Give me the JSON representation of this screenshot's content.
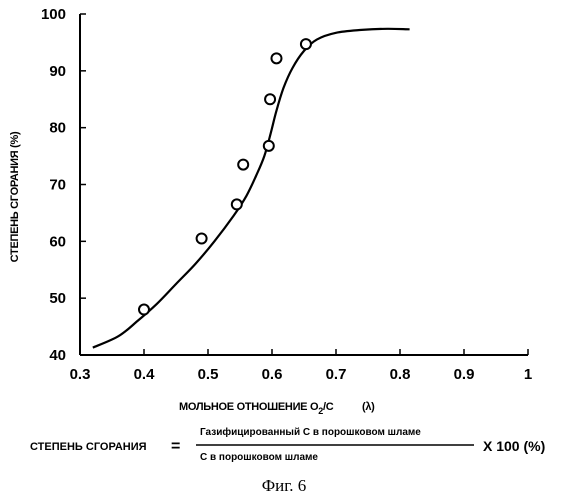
{
  "chart_data": {
    "type": "scatter",
    "xlabel_main": "МОЛЬНОЕ ОТНОШЕНИЕ O",
    "xlabel_sub": "2",
    "xlabel_tail": "/C",
    "xlabel_lambda": "(λ)",
    "ylabel": "СТЕПЕНЬ СГОРАНИЯ (%)",
    "xlim": [
      0.3,
      1.0
    ],
    "ylim": [
      40,
      100
    ],
    "xticks": [
      0.3,
      0.4,
      0.5,
      0.6,
      0.7,
      0.8,
      0.9,
      1.0
    ],
    "xtick_labels": [
      "0.3",
      "0.4",
      "0.5",
      "0.6",
      "0.7",
      "0.8",
      "0.9",
      "1"
    ],
    "yticks": [
      40,
      50,
      60,
      70,
      80,
      90,
      100
    ],
    "ytick_labels": [
      "40",
      "50",
      "60",
      "70",
      "80",
      "90",
      "100"
    ],
    "grid": false,
    "points": [
      {
        "x": 0.4,
        "y": 48.0
      },
      {
        "x": 0.49,
        "y": 60.5
      },
      {
        "x": 0.545,
        "y": 66.5
      },
      {
        "x": 0.555,
        "y": 73.5
      },
      {
        "x": 0.595,
        "y": 76.8
      },
      {
        "x": 0.597,
        "y": 85.0
      },
      {
        "x": 0.607,
        "y": 92.2
      },
      {
        "x": 0.653,
        "y": 94.7
      }
    ],
    "fit_curve": [
      {
        "x": 0.32,
        "y": 41.3
      },
      {
        "x": 0.36,
        "y": 43.3
      },
      {
        "x": 0.39,
        "y": 46.0
      },
      {
        "x": 0.42,
        "y": 49.0
      },
      {
        "x": 0.45,
        "y": 52.5
      },
      {
        "x": 0.48,
        "y": 56.0
      },
      {
        "x": 0.51,
        "y": 60.0
      },
      {
        "x": 0.54,
        "y": 64.5
      },
      {
        "x": 0.56,
        "y": 68.0
      },
      {
        "x": 0.575,
        "y": 71.5
      },
      {
        "x": 0.588,
        "y": 75.0
      },
      {
        "x": 0.598,
        "y": 79.0
      },
      {
        "x": 0.607,
        "y": 83.0
      },
      {
        "x": 0.618,
        "y": 87.0
      },
      {
        "x": 0.632,
        "y": 90.5
      },
      {
        "x": 0.65,
        "y": 93.5
      },
      {
        "x": 0.67,
        "y": 95.5
      },
      {
        "x": 0.7,
        "y": 96.7
      },
      {
        "x": 0.74,
        "y": 97.2
      },
      {
        "x": 0.78,
        "y": 97.4
      },
      {
        "x": 0.815,
        "y": 97.3
      }
    ]
  },
  "formula": {
    "lhs": "СТЕПЕНЬ СГОРАНИЯ",
    "equals": "=",
    "numerator": "Газифицированный С в порошковом шламе",
    "denominator": "С  в порошковом  шламе",
    "factor": "X 100 (%)"
  },
  "caption": "Фиг. 6"
}
